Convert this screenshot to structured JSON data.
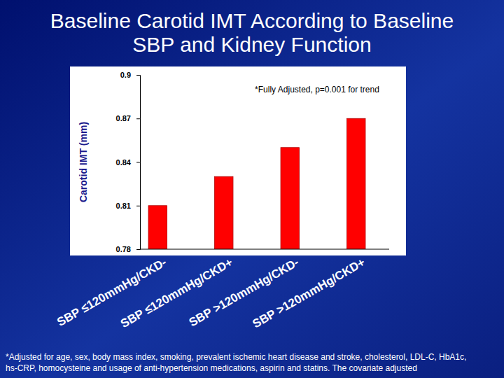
{
  "chart_data": {
    "type": "bar",
    "title": "Baseline Carotid IMT According to Baseline SBP and Kidney Function",
    "y_label": "Carotid IMT (mm)",
    "annotations": [
      "*Fully Adjusted, p=0.001 for trend"
    ],
    "footnote": "*Adjusted for age, sex, body mass index, smoking, prevalent ischemic heart disease and stroke, cholesterol, LDL-C, HbA1c, hs-CRP, homocysteine and usage of anti-hypertension medications, aspirin and statins. The covariate adjusted",
    "categories": [
      "SBP ≤120mmHg/CKD-",
      "SBP ≤120mmHg/CKD+",
      "SBP >120mmHg/CKD-",
      "SBP >120mmHg/CKD+"
    ],
    "values": [
      0.81,
      0.83,
      0.85,
      0.87
    ],
    "color": "#ff0000",
    "ylim": [
      0.78,
      0.9
    ],
    "yticks": [
      0.78,
      0.81,
      0.84,
      0.87,
      0.9
    ],
    "grid": false
  }
}
